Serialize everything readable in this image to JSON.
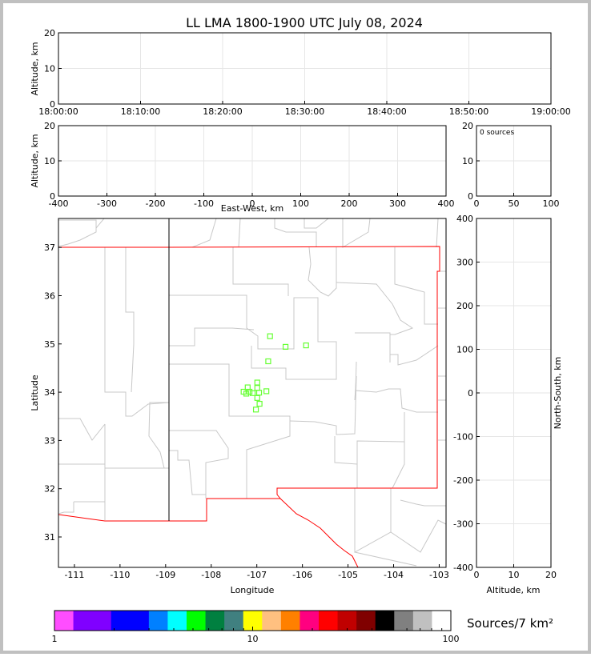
{
  "chart_data": {
    "title": "LL LMA 1800-1900 UTC July 08, 2024",
    "type": "scatter",
    "panels": {
      "time_altitude": {
        "ylabel": "Altitude, km",
        "ylim": [
          0,
          20
        ],
        "yticks": [
          "0",
          "10",
          "20"
        ],
        "xticks": [
          "18:00:00",
          "18:10:00",
          "18:20:00",
          "18:30:00",
          "18:40:00",
          "18:50:00",
          "19:00:00"
        ]
      },
      "ew_altitude": {
        "ylabel": "Altitude, km",
        "xlabel": "East-West, km",
        "xlim": [
          -400,
          400
        ],
        "ylim": [
          0,
          20
        ],
        "xticks": [
          "-400",
          "-300",
          "-200",
          "-100",
          "0",
          "100",
          "200",
          "300",
          "400"
        ],
        "yticks": [
          "0",
          "10",
          "20"
        ]
      },
      "histogram": {
        "annotation": "0 sources",
        "xlim": [
          0,
          100
        ],
        "ylim": [
          0,
          20
        ],
        "xticks": [
          "0",
          "50",
          "100"
        ],
        "yticks": [
          "0",
          "10",
          "20"
        ]
      },
      "plan_view": {
        "xlabel": "Longitude",
        "ylabel": "Latitude",
        "xlim": [
          -111.35,
          -102.85
        ],
        "ylim": [
          30.37,
          37.6
        ],
        "xticks": [
          "-111",
          "-110",
          "-109",
          "-108",
          "-107",
          "-106",
          "-105",
          "-104",
          "-103"
        ],
        "yticks": [
          "31",
          "32",
          "33",
          "34",
          "35",
          "36",
          "37"
        ],
        "marker_color": "#66ff33",
        "points": [
          {
            "lon": -106.71,
            "lat": 35.16
          },
          {
            "lon": -106.37,
            "lat": 34.94
          },
          {
            "lon": -105.92,
            "lat": 34.97
          },
          {
            "lon": -106.75,
            "lat": 34.64
          },
          {
            "lon": -106.99,
            "lat": 34.2
          },
          {
            "lon": -106.99,
            "lat": 34.09
          },
          {
            "lon": -107.2,
            "lat": 34.1
          },
          {
            "lon": -107.29,
            "lat": 34.01
          },
          {
            "lon": -107.23,
            "lat": 33.97
          },
          {
            "lon": -107.16,
            "lat": 34.01
          },
          {
            "lon": -107.09,
            "lat": 33.98
          },
          {
            "lon": -106.95,
            "lat": 33.99
          },
          {
            "lon": -106.79,
            "lat": 34.02
          },
          {
            "lon": -106.99,
            "lat": 33.88
          },
          {
            "lon": -106.94,
            "lat": 33.76
          },
          {
            "lon": -107.02,
            "lat": 33.64
          }
        ]
      },
      "ns_altitude": {
        "xlabel": "Altitude, km",
        "ylabel": "North-South, km",
        "xlim": [
          0,
          20
        ],
        "ylim": [
          -400,
          400
        ],
        "xticks": [
          "0",
          "10",
          "20"
        ],
        "yticks": [
          "-400",
          "-300",
          "-200",
          "-100",
          "0",
          "100",
          "200",
          "300",
          "400"
        ]
      }
    },
    "colorbar": {
      "label": "Sources/7 km²",
      "scale": "log",
      "range": [
        1,
        100
      ],
      "ticklabels": [
        "1",
        "10",
        "100"
      ],
      "colors": [
        "#ff4dff",
        "#8000ff",
        "#8000ff",
        "#0000ff",
        "#0000ff",
        "#0080ff",
        "#00ffff",
        "#00ff00",
        "#008040",
        "#408080",
        "#ffff00",
        "#ffc080",
        "#ff8000",
        "#ff0080",
        "#ff0000",
        "#c00000",
        "#800000",
        "#000000",
        "#808080",
        "#c0c0c0",
        "#ffffff"
      ]
    }
  }
}
